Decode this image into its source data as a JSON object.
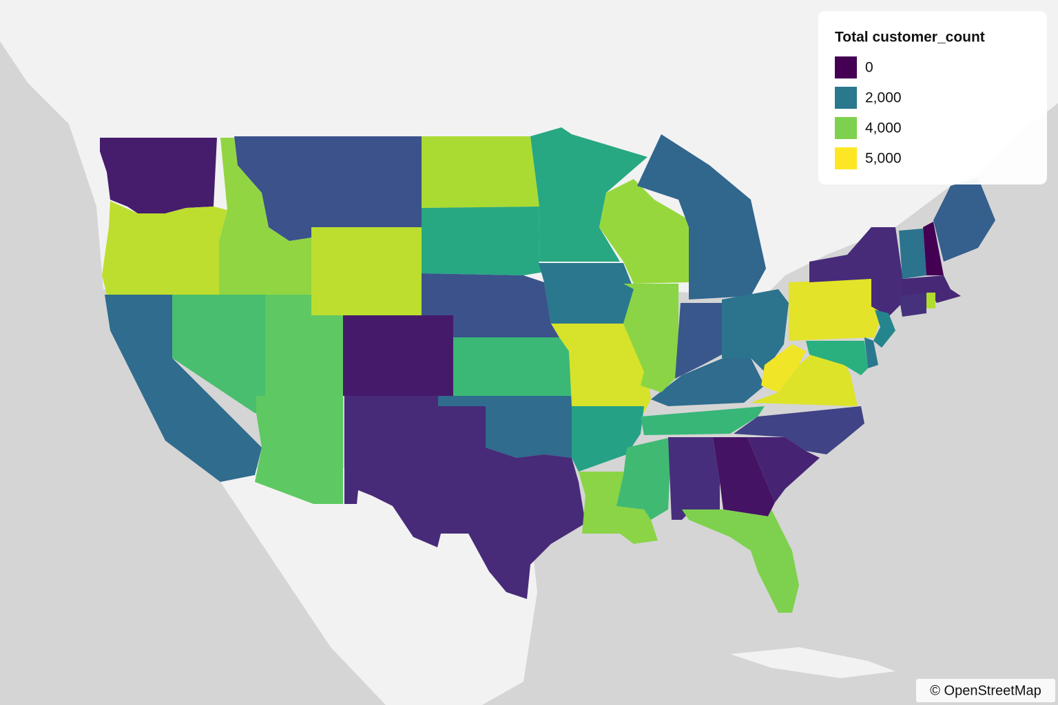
{
  "chart_data": {
    "type": "choropleth",
    "legend_title": "Total customer_count",
    "colorscale": [
      "#440154",
      "#472d7b",
      "#3b528b",
      "#2c728e",
      "#21918c",
      "#28ae80",
      "#5ec962",
      "#addc30",
      "#fde725"
    ],
    "zlim": [
      0,
      5000
    ],
    "ticks": [
      0,
      {
        "value": 2000,
        "label": "2,000"
      },
      {
        "value": 4000,
        "label": "4,000"
      },
      {
        "value": 5000,
        "label": "5,000"
      }
    ],
    "values": [
      400,
      4500,
      1750,
      3500,
      4150,
      1250,
      4500,
      3750,
      350,
      3750,
      600,
      4350,
      3000,
      1250,
      3350,
      1750,
      600,
      3000,
      2000,
      4700,
      2850,
      4100,
      3400,
      650,
      3300,
      1750,
      4200,
      4100,
      1350,
      1650,
      1900,
      4900,
      4750,
      1000,
      500,
      250,
      4000,
      4800,
      600,
      1900,
      0,
      1500,
      550,
      700,
      4400,
      2250,
      2000,
      3150
    ]
  },
  "attribution": "© OpenStreetMap"
}
